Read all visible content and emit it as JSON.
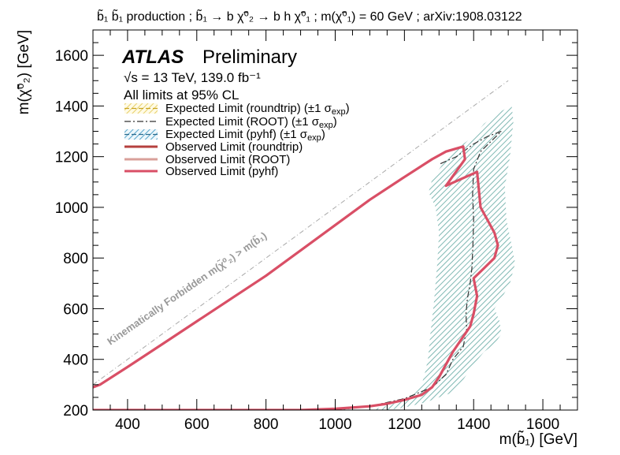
{
  "chart_data": {
    "type": "line",
    "title": "b̃₁ b̃₁ production ; b̃₁ → b χ̃⁰₂ → b h χ̃⁰₁ ; m(χ̃⁰₁) = 60 GeV ; arXiv:1908.03122",
    "xlabel": "m(b̃₁) [GeV]",
    "ylabel": "m(χ̃⁰₂) [GeV]",
    "xlim": [
      300,
      1700
    ],
    "ylim": [
      200,
      1700
    ],
    "xticks": [
      "400",
      "600",
      "800",
      "1000",
      "1200",
      "1400",
      "1600"
    ],
    "yticks": [
      "200",
      "400",
      "600",
      "800",
      "1000",
      "1200",
      "1400",
      "1600"
    ],
    "grid": false,
    "experiment": "ATLAS",
    "status": "Preliminary",
    "energy_label": "√s = 13 TeV, 139.0 fb⁻¹",
    "limits_note": "All limits at 95% CL",
    "forbidden_label": "Kinematically Forbidden m(χ̃⁰₂) > m(b̃₁)",
    "legend_position": "top-left",
    "colors": {
      "band": "#b9d9d6",
      "observed": "#d94f66",
      "expected": "#333333",
      "diagonal": "#aaaaaa"
    },
    "series": [
      {
        "name": "Expected Limit (roundtrip) (±1 σexp)",
        "legend_name": "Expected Limit (roundtrip) (±1 σ",
        "legend_sub": "exp",
        "legend_close": ")",
        "kind": "band",
        "points": [
          [
            1100,
            200
          ],
          [
            1150,
            216
          ],
          [
            1200,
            240
          ],
          [
            1230,
            265
          ],
          [
            1250,
            300
          ],
          [
            1260,
            350
          ],
          [
            1268,
            400
          ],
          [
            1275,
            500
          ],
          [
            1285,
            620
          ],
          [
            1295,
            780
          ],
          [
            1300,
            900
          ],
          [
            1290,
            1000
          ],
          [
            1270,
            1060
          ],
          [
            1280,
            1110
          ],
          [
            1320,
            1190
          ],
          [
            1360,
            1240
          ],
          [
            1400,
            1280
          ],
          [
            1430,
            1330
          ],
          [
            1480,
            1380
          ],
          [
            1510,
            1400
          ],
          [
            1515,
            1340
          ],
          [
            1505,
            1200
          ],
          [
            1490,
            1080
          ],
          [
            1495,
            950
          ],
          [
            1510,
            850
          ],
          [
            1520,
            780
          ],
          [
            1505,
            700
          ],
          [
            1480,
            640
          ],
          [
            1460,
            600
          ],
          [
            1475,
            550
          ],
          [
            1480,
            500
          ],
          [
            1460,
            460
          ],
          [
            1430,
            430
          ],
          [
            1400,
            380
          ],
          [
            1380,
            340
          ],
          [
            1360,
            300
          ],
          [
            1340,
            270
          ],
          [
            1300,
            250
          ],
          [
            1260,
            230
          ],
          [
            1200,
            210
          ],
          [
            1150,
            200
          ]
        ]
      },
      {
        "name": "Expected Limit (ROOT) (±1 σexp)",
        "legend_name": "Expected Limit (ROOT) (±1 σ",
        "legend_sub": "exp",
        "legend_close": ")",
        "kind": "expected",
        "points": [
          [
            1000,
            200
          ],
          [
            1100,
            215
          ],
          [
            1200,
            245
          ],
          [
            1280,
            290
          ],
          [
            1320,
            340
          ],
          [
            1340,
            400
          ],
          [
            1370,
            450
          ],
          [
            1380,
            520
          ],
          [
            1378,
            580
          ],
          [
            1382,
            640
          ],
          [
            1390,
            700
          ],
          [
            1395,
            760
          ],
          [
            1398,
            850
          ],
          [
            1400,
            950
          ],
          [
            1397,
            1050
          ],
          [
            1400,
            1150
          ],
          [
            1420,
            1220
          ],
          [
            1450,
            1260
          ],
          [
            1480,
            1300
          ],
          [
            1440,
            1280
          ],
          [
            1400,
            1250
          ],
          [
            1350,
            1200
          ],
          [
            1300,
            1170
          ]
        ]
      },
      {
        "name": "Expected Limit (pyhf) (±1 σexp)",
        "legend_name": "Expected Limit (pyhf) (±1 σ",
        "legend_sub": "exp",
        "legend_close": ")",
        "kind": "expected"
      },
      {
        "name": "Observed Limit (roundtrip)",
        "kind": "observed",
        "color": "#b5403e"
      },
      {
        "name": "Observed Limit (ROOT)",
        "kind": "observed",
        "color": "#d9a09a"
      },
      {
        "name": "Observed Limit (pyhf)",
        "kind": "observed",
        "color": "#d94f66",
        "points": [
          [
            300,
            290
          ],
          [
            320,
            300
          ],
          [
            400,
            370
          ],
          [
            500,
            460
          ],
          [
            600,
            550
          ],
          [
            700,
            640
          ],
          [
            800,
            730
          ],
          [
            900,
            830
          ],
          [
            1000,
            930
          ],
          [
            1100,
            1030
          ],
          [
            1200,
            1120
          ],
          [
            1280,
            1190
          ],
          [
            1320,
            1220
          ],
          [
            1370,
            1240
          ],
          [
            1375,
            1190
          ],
          [
            1320,
            1085
          ],
          [
            1410,
            1140
          ],
          [
            1420,
            1000
          ],
          [
            1440,
            950
          ],
          [
            1460,
            900
          ],
          [
            1470,
            850
          ],
          [
            1460,
            800
          ],
          [
            1430,
            760
          ],
          [
            1400,
            720
          ],
          [
            1410,
            650
          ],
          [
            1400,
            580
          ],
          [
            1390,
            530
          ],
          [
            1370,
            490
          ],
          [
            1340,
            430
          ],
          [
            1320,
            380
          ],
          [
            1300,
            330
          ],
          [
            1280,
            290
          ],
          [
            1250,
            260
          ],
          [
            1200,
            240
          ],
          [
            1150,
            225
          ],
          [
            1100,
            215
          ],
          [
            1000,
            205
          ],
          [
            900,
            200
          ],
          [
            300,
            200
          ]
        ]
      }
    ]
  }
}
